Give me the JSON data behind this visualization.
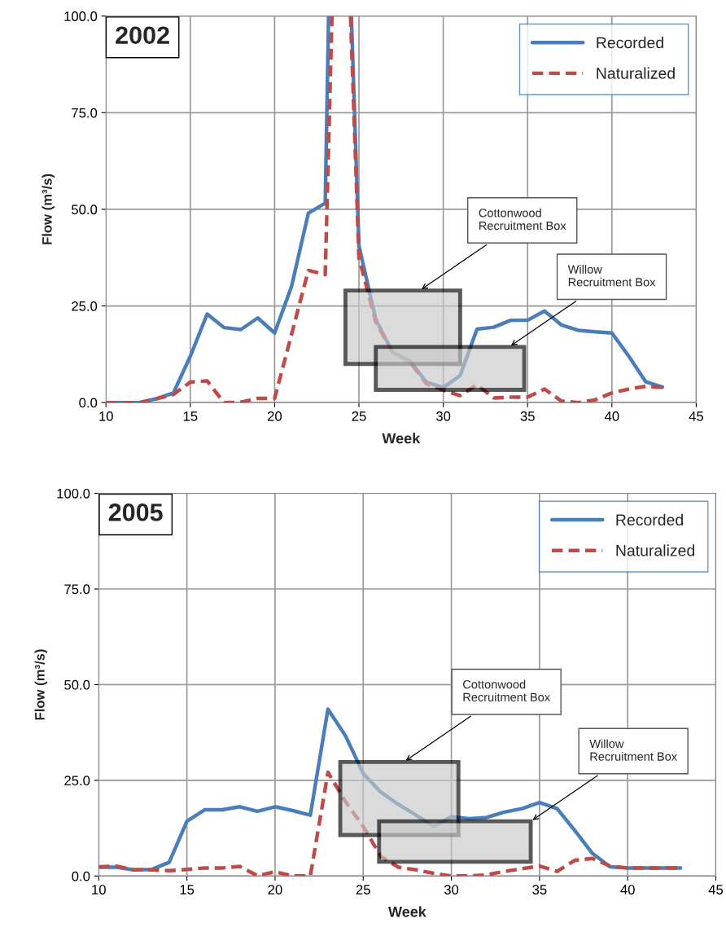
{
  "chart_data": [
    {
      "type": "line",
      "title": "2002",
      "xlabel": "Week",
      "ylabel": "Flow (m³/s)",
      "xlim": [
        10,
        45
      ],
      "ylim": [
        0,
        100
      ],
      "xticks": [
        10,
        15,
        20,
        25,
        30,
        35,
        40,
        45
      ],
      "yticks": [
        {
          "value": 0,
          "label": "0.0"
        },
        {
          "value": 25,
          "label": "25.0"
        },
        {
          "value": 50,
          "label": "50.0"
        },
        {
          "value": 75,
          "label": "75.0"
        },
        {
          "value": 100,
          "label": "100.0"
        }
      ],
      "grid": true,
      "legend": "top right",
      "marker": "none",
      "series": [
        {
          "name": "Recorded",
          "line_style": "solid",
          "color": "#4a7ebb",
          "x": [
            10,
            11,
            12,
            13,
            14,
            15,
            16,
            17,
            18,
            19,
            20,
            21,
            22,
            23,
            23.2,
            24,
            24.55,
            25,
            26,
            27,
            28,
            29,
            30,
            31,
            32,
            33,
            34,
            35,
            36,
            37,
            38,
            39,
            40,
            41,
            42,
            43
          ],
          "values": [
            0,
            0,
            0,
            1,
            2.5,
            12,
            22.9,
            19.4,
            18.9,
            21.9,
            18,
            30,
            49,
            51.6,
            100,
            null,
            100,
            40.5,
            21.5,
            13,
            10.9,
            5.3,
            3.9,
            7,
            19,
            19.5,
            21.3,
            21.3,
            23.7,
            20.1,
            18.7,
            18.3,
            18,
            12,
            5.4,
            4
          ]
        },
        {
          "name": "Naturalized",
          "line_style": "dashed",
          "color": "#be4b48",
          "x": [
            10,
            11,
            12,
            13,
            14,
            15,
            16,
            17,
            18,
            19,
            20,
            21,
            22,
            23,
            23.4,
            24,
            24.5,
            25,
            26,
            27,
            28,
            29,
            30,
            31,
            32,
            33,
            34,
            35,
            36,
            37,
            38,
            39,
            40,
            41,
            42,
            43
          ],
          "values": [
            0,
            0,
            0,
            1,
            2.1,
            5.3,
            5.6,
            0,
            0.1,
            1.1,
            1.1,
            17.6,
            34.2,
            33.1,
            100,
            null,
            100,
            37.4,
            20.8,
            13,
            10.6,
            4.9,
            3.2,
            1.8,
            4.6,
            1.2,
            1.4,
            1.4,
            3.5,
            0.4,
            0,
            0.7,
            2.5,
            3.5,
            4.2,
            3.9
          ]
        },
        {
          "type": "area",
          "color": "#000000",
          "x": [
            24.2,
            31,
            31,
            24.2,
            24.2
          ],
          "values": [
            29,
            29,
            10,
            10,
            29
          ]
        },
        {
          "type": "area",
          "color": "#000000",
          "x": [
            26,
            34.8,
            34.8,
            26,
            26
          ],
          "values": [
            14.4,
            14.4,
            3.3,
            3.3,
            14.4
          ]
        }
      ],
      "annotations": [
        {
          "text": "Cottonwood\nRecruitment Box",
          "x": 28.6,
          "y": 29
        },
        {
          "text": "Willow\nRecruitment Box",
          "x": 33.9,
          "y": 14.4
        }
      ]
    },
    {
      "type": "line",
      "title": "2005",
      "xlabel": "Week",
      "ylabel": "Flow (m³/s)",
      "xlim": [
        10,
        45
      ],
      "ylim": [
        0,
        100
      ],
      "xticks": [
        10,
        15,
        20,
        25,
        30,
        35,
        40,
        45
      ],
      "yticks": [
        {
          "value": 0,
          "label": "0.0"
        },
        {
          "value": 25,
          "label": "25.0"
        },
        {
          "value": 50,
          "label": "50.0"
        },
        {
          "value": 75,
          "label": "75.0"
        },
        {
          "value": 100,
          "label": "100.0"
        }
      ],
      "grid": true,
      "legend": "top right",
      "marker": "none",
      "series": [
        {
          "name": "Recorded",
          "line_style": "solid",
          "color": "#4a7ebb",
          "x": [
            10,
            11,
            12,
            13,
            14,
            15,
            16,
            17,
            18,
            19,
            20,
            21,
            22,
            23,
            24,
            25,
            26,
            27,
            28,
            29,
            30,
            31,
            32,
            33,
            34,
            35,
            36,
            37,
            38,
            39,
            40,
            41,
            42,
            43
          ],
          "values": [
            2.3,
            2.3,
            1.6,
            1.7,
            3.6,
            14.3,
            17.3,
            17.3,
            18.1,
            16.9,
            18.1,
            17.1,
            15.9,
            43.6,
            36.6,
            26.8,
            21.9,
            18.7,
            15.9,
            13,
            15.5,
            15,
            15.3,
            16.7,
            17.6,
            19.2,
            17.6,
            11.9,
            5.9,
            2.4,
            2.1,
            2.1,
            2.1,
            2.1
          ]
        },
        {
          "name": "Naturalized",
          "line_style": "dashed",
          "color": "#be4b48",
          "x": [
            10,
            11,
            12,
            13,
            14,
            15,
            16,
            17,
            18,
            19,
            20,
            21,
            22,
            23,
            24,
            25,
            26,
            27,
            28,
            29,
            30,
            31,
            32,
            33,
            34,
            35,
            36,
            37,
            38,
            39,
            40,
            41,
            42,
            43
          ],
          "values": [
            2.4,
            2.6,
            1.6,
            1.6,
            1.4,
            1.7,
            2.1,
            2.1,
            2.5,
            0.1,
            1.1,
            0,
            0,
            27.1,
            19.4,
            13,
            5.1,
            2.3,
            1.6,
            0.7,
            0,
            0,
            0.3,
            1.2,
            1.9,
            2.6,
            1.2,
            4.1,
            4.6,
            2.6,
            2.1,
            2.1,
            2.1,
            2.1
          ]
        },
        {
          "type": "area",
          "color": "#000000",
          "x": [
            23.7,
            30.4,
            30.4,
            23.7,
            23.7
          ],
          "values": [
            29.8,
            29.8,
            10.7,
            10.7,
            29.8
          ]
        },
        {
          "type": "area",
          "color": "#000000",
          "x": [
            25.9,
            34.5,
            34.5,
            25.9,
            25.9
          ],
          "values": [
            14.3,
            14.3,
            3.7,
            3.7,
            14.3
          ]
        }
      ],
      "annotations": [
        {
          "text": "Cottonwood\nRecruitment Box",
          "x": 27.3,
          "y": 29.8
        },
        {
          "text": "Willow\nRecruitment Box",
          "x": 34.5,
          "y": 14.3
        }
      ]
    }
  ]
}
